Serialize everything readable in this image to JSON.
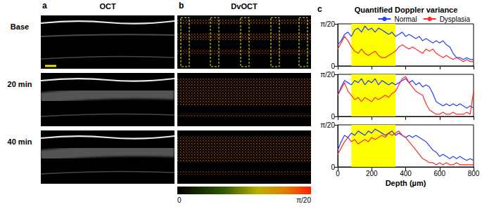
{
  "figure": {
    "panel_a": {
      "letter": "a",
      "title": "OCT",
      "rows": [
        "Base",
        "20 min",
        "40 min"
      ]
    },
    "panel_b": {
      "letter": "b",
      "title": "DvOCT",
      "colorbar": {
        "range": [
          0,
          0.1571
        ],
        "ticks": [
          0,
          {
            "value": 0.1571,
            "label": "π/20"
          }
        ]
      }
    },
    "panel_c": {
      "letter": "c",
      "title": "Quantified Doppler variance"
    }
  },
  "chart_data": [
    {
      "type": "line",
      "legend": "upper right",
      "tick_labels": "y",
      "x": [
        0,
        20,
        40,
        60,
        80,
        100,
        120,
        140,
        160,
        180,
        200,
        220,
        240,
        260,
        280,
        300,
        320,
        340,
        360,
        380,
        400,
        420,
        440,
        460,
        480,
        500,
        520,
        540,
        560,
        580,
        600,
        620,
        640,
        660,
        680,
        700,
        720,
        740,
        760,
        780,
        800
      ],
      "xlim": [
        0,
        800
      ],
      "xticks": [
        0,
        200,
        400,
        600,
        800
      ],
      "ylim": [
        0,
        0.1571
      ],
      "yticks": [
        0,
        {
          "value": 0.1571,
          "label": "π/20"
        }
      ],
      "highlight_range": [
        80,
        340
      ],
      "series": [
        {
          "name": "Normal",
          "color": "#2040ff",
          "values": [
            0.079,
            0.094,
            0.118,
            0.126,
            0.11,
            0.134,
            0.141,
            0.126,
            0.149,
            0.134,
            0.141,
            0.126,
            0.141,
            0.134,
            0.126,
            0.118,
            0.126,
            0.11,
            0.118,
            0.126,
            0.11,
            0.118,
            0.11,
            0.102,
            0.11,
            0.094,
            0.102,
            0.094,
            0.086,
            0.094,
            0.086,
            0.094,
            0.079,
            0.071,
            0.047,
            0.031,
            0.031,
            0.024,
            0.031,
            0.024,
            0.024
          ]
        },
        {
          "name": "Dysplasia",
          "color": "#ff2a2a",
          "values": [
            0.063,
            0.086,
            0.11,
            0.094,
            0.071,
            0.055,
            0.047,
            0.063,
            0.047,
            0.039,
            0.047,
            0.055,
            0.039,
            0.031,
            0.031,
            0.039,
            0.047,
            0.055,
            0.071,
            0.079,
            0.071,
            0.063,
            0.071,
            0.063,
            0.055,
            0.047,
            0.063,
            0.055,
            0.063,
            0.047,
            0.039,
            0.031,
            0.039,
            0.031,
            0.024,
            0.031,
            0.024,
            0.016,
            0.024,
            0.016,
            0.016
          ]
        }
      ]
    },
    {
      "type": "line",
      "tick_labels": "y",
      "x": [
        0,
        20,
        40,
        60,
        80,
        100,
        120,
        140,
        160,
        180,
        200,
        220,
        240,
        260,
        280,
        300,
        320,
        340,
        360,
        380,
        400,
        420,
        440,
        460,
        480,
        500,
        520,
        540,
        560,
        580,
        600,
        620,
        640,
        660,
        680,
        700,
        720,
        740,
        760,
        780,
        800
      ],
      "xlim": [
        0,
        800
      ],
      "xticks": [
        0,
        200,
        400,
        600,
        800
      ],
      "ylim": [
        0,
        0.1571
      ],
      "yticks": [
        0,
        {
          "value": 0.1571,
          "label": "π/20"
        }
      ],
      "highlight_range": [
        80,
        340
      ],
      "series": [
        {
          "name": "Normal",
          "color": "#2040ff",
          "values": [
            0.079,
            0.11,
            0.134,
            0.126,
            0.118,
            0.134,
            0.126,
            0.141,
            0.118,
            0.134,
            0.126,
            0.141,
            0.118,
            0.134,
            0.126,
            0.118,
            0.126,
            0.118,
            0.126,
            0.134,
            0.141,
            0.126,
            0.134,
            0.118,
            0.126,
            0.11,
            0.118,
            0.11,
            0.086,
            0.055,
            0.047,
            0.039,
            0.047,
            0.039,
            0.047,
            0.039,
            0.047,
            0.039,
            0.031,
            0.039,
            0.031
          ]
        },
        {
          "name": "Dysplasia",
          "color": "#ff2a2a",
          "values": [
            0.079,
            0.102,
            0.126,
            0.094,
            0.079,
            0.063,
            0.071,
            0.055,
            0.071,
            0.063,
            0.055,
            0.071,
            0.063,
            0.071,
            0.079,
            0.071,
            0.086,
            0.094,
            0.118,
            0.141,
            0.149,
            0.126,
            0.11,
            0.094,
            0.086,
            0.079,
            0.047,
            0.024,
            0.016,
            0.008,
            0.008,
            0.016,
            0.008,
            0.008,
            0.016,
            0.008,
            0.008,
            0.008,
            0.016,
            0.008,
            0.094
          ]
        }
      ]
    },
    {
      "type": "line",
      "xlabel": "Depth (µm)",
      "x": [
        0,
        20,
        40,
        60,
        80,
        100,
        120,
        140,
        160,
        180,
        200,
        220,
        240,
        260,
        280,
        300,
        320,
        340,
        360,
        380,
        400,
        420,
        440,
        460,
        480,
        500,
        520,
        540,
        560,
        580,
        600,
        620,
        640,
        660,
        680,
        700,
        720,
        740,
        760,
        780,
        800
      ],
      "xlim": [
        0,
        800
      ],
      "xticks": [
        0,
        200,
        400,
        600,
        800
      ],
      "ylim": [
        0,
        0.1571
      ],
      "yticks": [
        0,
        {
          "value": 0.1571,
          "label": "π/20"
        }
      ],
      "highlight_range": [
        80,
        340
      ],
      "series": [
        {
          "name": "Normal",
          "color": "#2040ff",
          "values": [
            0.063,
            0.094,
            0.118,
            0.11,
            0.126,
            0.118,
            0.134,
            0.126,
            0.118,
            0.134,
            0.126,
            0.141,
            0.134,
            0.126,
            0.118,
            0.126,
            0.134,
            0.118,
            0.126,
            0.118,
            0.11,
            0.118,
            0.11,
            0.118,
            0.11,
            0.102,
            0.094,
            0.079,
            0.063,
            0.055,
            0.039,
            0.047,
            0.039,
            0.031,
            0.039,
            0.031,
            0.039,
            0.031,
            0.024,
            0.031,
            0.024
          ]
        },
        {
          "name": "Dysplasia",
          "color": "#ff2a2a",
          "values": [
            0.047,
            0.071,
            0.094,
            0.11,
            0.094,
            0.102,
            0.086,
            0.094,
            0.102,
            0.094,
            0.11,
            0.102,
            0.11,
            0.118,
            0.11,
            0.126,
            0.118,
            0.126,
            0.134,
            0.118,
            0.11,
            0.094,
            0.079,
            0.063,
            0.047,
            0.031,
            0.024,
            0.016,
            0.016,
            0.008,
            0.016,
            0.008,
            0.016,
            0.008,
            0.008,
            0.016,
            0.008,
            0.008,
            0.008,
            0.008,
            0.008
          ]
        }
      ]
    }
  ]
}
